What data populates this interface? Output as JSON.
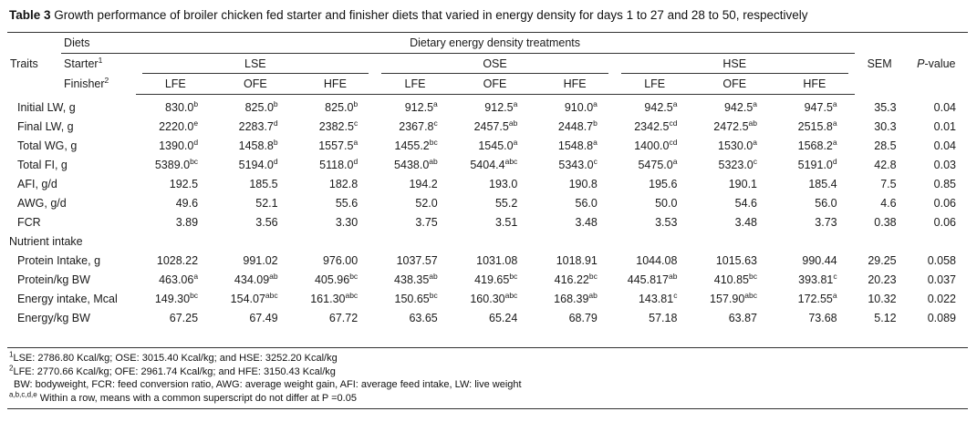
{
  "title": {
    "label": "Table 3",
    "text": "Growth performance of broiler chicken fed starter and finisher diets that varied in energy density for days 1 to 27 and 28 to 50, respectively"
  },
  "header": {
    "traits": "Traits",
    "diets": "Diets",
    "treatments": "Dietary energy density treatments",
    "starter": {
      "label": "Starter",
      "sup": "1",
      "groups": [
        "LSE",
        "OSE",
        "HSE"
      ]
    },
    "finisher": {
      "label": "Finisher",
      "sup": "2",
      "cols": [
        "LFE",
        "OFE",
        "HFE",
        "LFE",
        "OFE",
        "HFE",
        "LFE",
        "OFE",
        "HFE"
      ]
    },
    "sem": "SEM",
    "pvalue": {
      "italic": "P",
      "rest": "-value"
    }
  },
  "rows": [
    {
      "trait": "Initial LW, g",
      "values": [
        "830.0^b",
        "825.0^b",
        "825.0^b",
        "912.5^a",
        "912.5^a",
        "910.0^a",
        "942.5^a",
        "942.5^a",
        "947.5^a"
      ],
      "sem": "35.3",
      "p": "0.04"
    },
    {
      "trait": "Final LW, g",
      "values": [
        "2220.0^e",
        "2283.7^d",
        "2382.5^c",
        "2367.8^c",
        "2457.5^ab",
        "2448.7^b",
        "2342.5^cd",
        "2472.5^ab",
        "2515.8^a"
      ],
      "sem": "30.3",
      "p": "0.01"
    },
    {
      "trait": "Total WG, g",
      "values": [
        "1390.0^d",
        "1458.8^b",
        "1557.5^a",
        "1455.2^bc",
        "1545.0^a",
        "1548.8^a",
        "1400.0^cd",
        "1530.0^a",
        "1568.2^a"
      ],
      "sem": "28.5",
      "p": "0.04"
    },
    {
      "trait": "Total FI, g",
      "values": [
        "5389.0^bc",
        "5194.0^d",
        "5118.0^d",
        "5438.0^ab",
        "5404.4^abc",
        "5343.0^c",
        "5475.0^a",
        "5323.0^c",
        "5191.0^d"
      ],
      "sem": "42.8",
      "p": "0.03"
    },
    {
      "trait": "AFI, g/d",
      "values": [
        "192.5",
        "185.5",
        "182.8",
        "194.2",
        "193.0",
        "190.8",
        "195.6",
        "190.1",
        "185.4"
      ],
      "sem": "7.5",
      "p": "0.85"
    },
    {
      "trait": "AWG, g/d",
      "values": [
        "49.6",
        "52.1",
        "55.6",
        "52.0",
        "55.2",
        "56.0",
        "50.0",
        "54.6",
        "56.0"
      ],
      "sem": "4.6",
      "p": "0.06"
    },
    {
      "trait": "FCR",
      "values": [
        "3.89",
        "3.56",
        "3.30",
        "3.75",
        "3.51",
        "3.48",
        "3.53",
        "3.48",
        "3.73"
      ],
      "sem": "0.38",
      "p": "0.06"
    },
    {
      "trait": "Nutrient intake",
      "section": true
    },
    {
      "trait": "Protein Intake, g",
      "values": [
        "1028.22",
        "991.02",
        "976.00",
        "1037.57",
        "1031.08",
        "1018.91",
        "1044.08",
        "1015.63",
        "990.44"
      ],
      "sem": "29.25",
      "p": "0.058"
    },
    {
      "trait": "Protein/kg BW",
      "values": [
        "463.06^a",
        "434.09^ab",
        "405.96^bc",
        "438.35^ab",
        "419.65^bc",
        "416.22^bc",
        "445.817^ab",
        "410.85^bc",
        "393.81^c"
      ],
      "sem": "20.23",
      "p": "0.037"
    },
    {
      "trait": "Energy intake, Mcal",
      "values": [
        "149.30^bc",
        "154.07^abc",
        "161.30^abc",
        "150.65^bc",
        "160.30^abc",
        "168.39^ab",
        "143.81^c",
        "157.90^abc",
        "172.55^a"
      ],
      "sem": "10.32",
      "p": "0.022"
    },
    {
      "trait": "Energy/kg BW",
      "values": [
        "67.25",
        "67.49",
        "67.72",
        "63.65",
        "65.24",
        "68.79",
        "57.18",
        "63.87",
        "73.68"
      ],
      "sem": "5.12",
      "p": "0.089"
    }
  ],
  "footnotes": [
    {
      "sup": "1",
      "text": "LSE: 2786.80 Kcal/kg; OSE: 3015.40 Kcal/kg; and HSE: 3252.20 Kcal/kg"
    },
    {
      "sup": "2",
      "text": "LFE: 2770.66 Kcal/kg; OFE: 2961.74 Kcal/kg; and HFE: 3150.43 Kcal/kg"
    },
    {
      "sup": "",
      "text": "BW: bodyweight, FCR: feed conversion ratio, AWG: average weight gain, AFI: average feed intake, LW: live weight"
    },
    {
      "sup": "a,b,c,d,e",
      "text": "Within a row, means with a common superscript do not differ at P =0.05"
    }
  ]
}
